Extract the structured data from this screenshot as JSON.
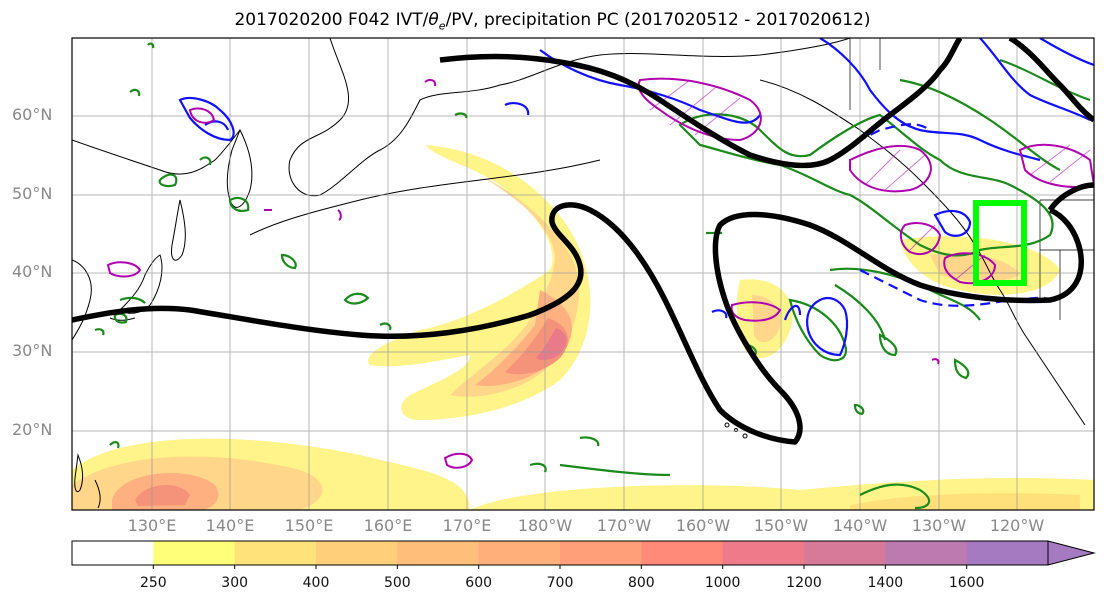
{
  "title": {
    "prefix": "2017020200 F042 IVT/",
    "theta": "θ",
    "sub": "e",
    "suffix": "/PV, precipitation PC (2017020512 - 2017020612)"
  },
  "lat_labels": [
    "60°N",
    "50°N",
    "40°N",
    "30°N",
    "20°N"
  ],
  "lon_labels": [
    "130°E",
    "140°E",
    "150°E",
    "160°E",
    "170°E",
    "180°W",
    "170°W",
    "160°W",
    "150°W",
    "140°W",
    "130°W",
    "120°W"
  ],
  "colorbar": {
    "labels": [
      "250",
      "300",
      "400",
      "500",
      "600",
      "700",
      "800",
      "1000",
      "1200",
      "1400",
      "1600"
    ],
    "colors": [
      "#ffffff",
      "#ffff7a",
      "#ffe37a",
      "#ffcf7a",
      "#ffbe7a",
      "#ffb07a",
      "#ff9f7a",
      "#ff8a7a",
      "#ee7a8a",
      "#d77a9a",
      "#bc7ab0",
      "#a57ac0"
    ]
  },
  "colors": {
    "jet_contour": "#000000",
    "theta_contour": "#1a8a1a",
    "pv_contour": "#1010ff",
    "precip_contour": "#b000b0",
    "target_box": "#00ff00"
  }
}
